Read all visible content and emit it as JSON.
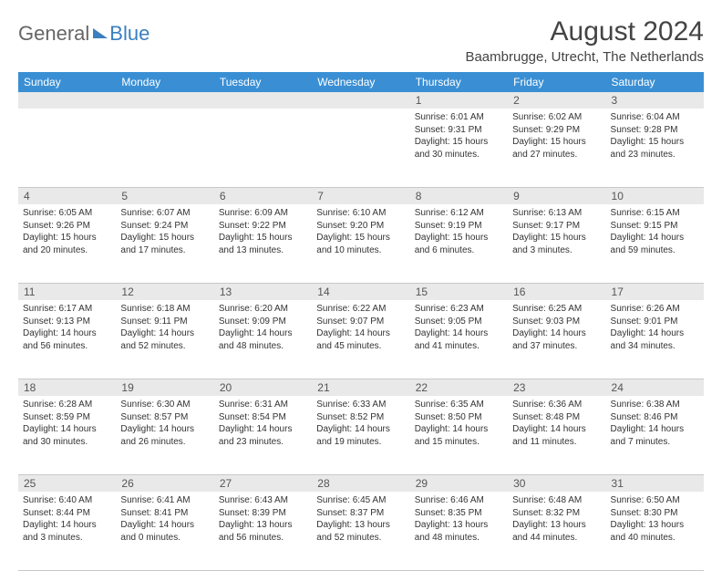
{
  "logo": {
    "part1": "General",
    "part2": "Blue"
  },
  "title": {
    "month": "August 2024",
    "location": "Baambrugge, Utrecht, The Netherlands"
  },
  "colors": {
    "header_bg": "#3a8fd4",
    "header_text": "#ffffff",
    "daynum_bg": "#e9e9e9",
    "text": "#333333",
    "logo_gray": "#666666",
    "logo_blue": "#3a7fbf",
    "border": "#c8c8c8",
    "page_bg": "#ffffff"
  },
  "typography": {
    "title_fontsize": 30,
    "location_fontsize": 15,
    "dow_fontsize": 12,
    "daynum_fontsize": 12,
    "body_fontsize": 10
  },
  "dow": [
    "Sunday",
    "Monday",
    "Tuesday",
    "Wednesday",
    "Thursday",
    "Friday",
    "Saturday"
  ],
  "weeks": [
    [
      {
        "n": "",
        "sr": "",
        "ss": "",
        "dl": ""
      },
      {
        "n": "",
        "sr": "",
        "ss": "",
        "dl": ""
      },
      {
        "n": "",
        "sr": "",
        "ss": "",
        "dl": ""
      },
      {
        "n": "",
        "sr": "",
        "ss": "",
        "dl": ""
      },
      {
        "n": "1",
        "sr": "Sunrise: 6:01 AM",
        "ss": "Sunset: 9:31 PM",
        "dl": "Daylight: 15 hours and 30 minutes."
      },
      {
        "n": "2",
        "sr": "Sunrise: 6:02 AM",
        "ss": "Sunset: 9:29 PM",
        "dl": "Daylight: 15 hours and 27 minutes."
      },
      {
        "n": "3",
        "sr": "Sunrise: 6:04 AM",
        "ss": "Sunset: 9:28 PM",
        "dl": "Daylight: 15 hours and 23 minutes."
      }
    ],
    [
      {
        "n": "4",
        "sr": "Sunrise: 6:05 AM",
        "ss": "Sunset: 9:26 PM",
        "dl": "Daylight: 15 hours and 20 minutes."
      },
      {
        "n": "5",
        "sr": "Sunrise: 6:07 AM",
        "ss": "Sunset: 9:24 PM",
        "dl": "Daylight: 15 hours and 17 minutes."
      },
      {
        "n": "6",
        "sr": "Sunrise: 6:09 AM",
        "ss": "Sunset: 9:22 PM",
        "dl": "Daylight: 15 hours and 13 minutes."
      },
      {
        "n": "7",
        "sr": "Sunrise: 6:10 AM",
        "ss": "Sunset: 9:20 PM",
        "dl": "Daylight: 15 hours and 10 minutes."
      },
      {
        "n": "8",
        "sr": "Sunrise: 6:12 AM",
        "ss": "Sunset: 9:19 PM",
        "dl": "Daylight: 15 hours and 6 minutes."
      },
      {
        "n": "9",
        "sr": "Sunrise: 6:13 AM",
        "ss": "Sunset: 9:17 PM",
        "dl": "Daylight: 15 hours and 3 minutes."
      },
      {
        "n": "10",
        "sr": "Sunrise: 6:15 AM",
        "ss": "Sunset: 9:15 PM",
        "dl": "Daylight: 14 hours and 59 minutes."
      }
    ],
    [
      {
        "n": "11",
        "sr": "Sunrise: 6:17 AM",
        "ss": "Sunset: 9:13 PM",
        "dl": "Daylight: 14 hours and 56 minutes."
      },
      {
        "n": "12",
        "sr": "Sunrise: 6:18 AM",
        "ss": "Sunset: 9:11 PM",
        "dl": "Daylight: 14 hours and 52 minutes."
      },
      {
        "n": "13",
        "sr": "Sunrise: 6:20 AM",
        "ss": "Sunset: 9:09 PM",
        "dl": "Daylight: 14 hours and 48 minutes."
      },
      {
        "n": "14",
        "sr": "Sunrise: 6:22 AM",
        "ss": "Sunset: 9:07 PM",
        "dl": "Daylight: 14 hours and 45 minutes."
      },
      {
        "n": "15",
        "sr": "Sunrise: 6:23 AM",
        "ss": "Sunset: 9:05 PM",
        "dl": "Daylight: 14 hours and 41 minutes."
      },
      {
        "n": "16",
        "sr": "Sunrise: 6:25 AM",
        "ss": "Sunset: 9:03 PM",
        "dl": "Daylight: 14 hours and 37 minutes."
      },
      {
        "n": "17",
        "sr": "Sunrise: 6:26 AM",
        "ss": "Sunset: 9:01 PM",
        "dl": "Daylight: 14 hours and 34 minutes."
      }
    ],
    [
      {
        "n": "18",
        "sr": "Sunrise: 6:28 AM",
        "ss": "Sunset: 8:59 PM",
        "dl": "Daylight: 14 hours and 30 minutes."
      },
      {
        "n": "19",
        "sr": "Sunrise: 6:30 AM",
        "ss": "Sunset: 8:57 PM",
        "dl": "Daylight: 14 hours and 26 minutes."
      },
      {
        "n": "20",
        "sr": "Sunrise: 6:31 AM",
        "ss": "Sunset: 8:54 PM",
        "dl": "Daylight: 14 hours and 23 minutes."
      },
      {
        "n": "21",
        "sr": "Sunrise: 6:33 AM",
        "ss": "Sunset: 8:52 PM",
        "dl": "Daylight: 14 hours and 19 minutes."
      },
      {
        "n": "22",
        "sr": "Sunrise: 6:35 AM",
        "ss": "Sunset: 8:50 PM",
        "dl": "Daylight: 14 hours and 15 minutes."
      },
      {
        "n": "23",
        "sr": "Sunrise: 6:36 AM",
        "ss": "Sunset: 8:48 PM",
        "dl": "Daylight: 14 hours and 11 minutes."
      },
      {
        "n": "24",
        "sr": "Sunrise: 6:38 AM",
        "ss": "Sunset: 8:46 PM",
        "dl": "Daylight: 14 hours and 7 minutes."
      }
    ],
    [
      {
        "n": "25",
        "sr": "Sunrise: 6:40 AM",
        "ss": "Sunset: 8:44 PM",
        "dl": "Daylight: 14 hours and 3 minutes."
      },
      {
        "n": "26",
        "sr": "Sunrise: 6:41 AM",
        "ss": "Sunset: 8:41 PM",
        "dl": "Daylight: 14 hours and 0 minutes."
      },
      {
        "n": "27",
        "sr": "Sunrise: 6:43 AM",
        "ss": "Sunset: 8:39 PM",
        "dl": "Daylight: 13 hours and 56 minutes."
      },
      {
        "n": "28",
        "sr": "Sunrise: 6:45 AM",
        "ss": "Sunset: 8:37 PM",
        "dl": "Daylight: 13 hours and 52 minutes."
      },
      {
        "n": "29",
        "sr": "Sunrise: 6:46 AM",
        "ss": "Sunset: 8:35 PM",
        "dl": "Daylight: 13 hours and 48 minutes."
      },
      {
        "n": "30",
        "sr": "Sunrise: 6:48 AM",
        "ss": "Sunset: 8:32 PM",
        "dl": "Daylight: 13 hours and 44 minutes."
      },
      {
        "n": "31",
        "sr": "Sunrise: 6:50 AM",
        "ss": "Sunset: 8:30 PM",
        "dl": "Daylight: 13 hours and 40 minutes."
      }
    ]
  ]
}
